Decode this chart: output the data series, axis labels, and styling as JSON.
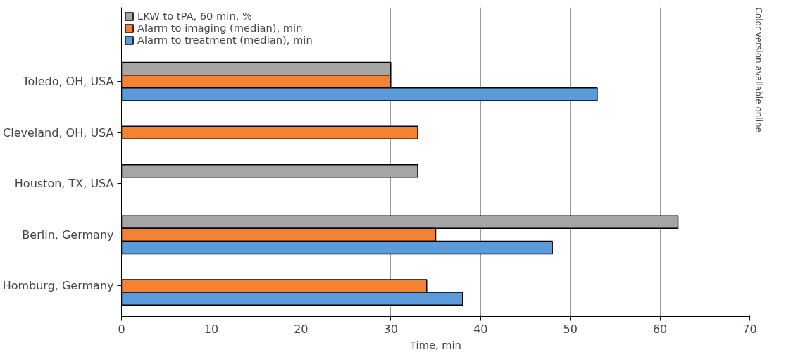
{
  "chart_data": {
    "type": "bar",
    "orientation": "horizontal",
    "xlabel": "Time, min",
    "categories": [
      "Toledo, OH, USA",
      "Cleveland, OH, USA",
      "Houston, TX, USA",
      "Berlin, Germany",
      "Homburg, Germany"
    ],
    "series": [
      {
        "name": "LKW to tPA, 60 min, %",
        "color": "#a5a5a5",
        "values": [
          30,
          null,
          33,
          62,
          null
        ]
      },
      {
        "name": "Alarm to imaging (median), min",
        "color": "#f58232",
        "values": [
          30,
          33,
          null,
          35,
          34
        ]
      },
      {
        "name": "Alarm to treatment (median), min",
        "color": "#5b9bd9",
        "values": [
          53,
          null,
          null,
          48,
          38
        ]
      }
    ],
    "xlim": [
      0,
      70
    ],
    "xticks": [
      0,
      10,
      20,
      30,
      40,
      50,
      60,
      70
    ],
    "grid": "x",
    "legend": "top left",
    "annotations": [
      "Color version available online"
    ]
  }
}
